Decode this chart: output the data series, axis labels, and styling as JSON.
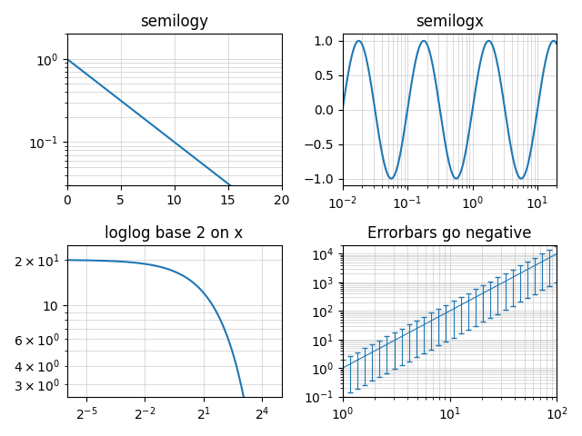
{
  "title_semilogy": "semilogy",
  "title_semilogx": "semilogx",
  "title_loglog": "loglog base 2 on x",
  "title_errorbars": "Errorbars go negative",
  "line_color": "#1f77b4"
}
